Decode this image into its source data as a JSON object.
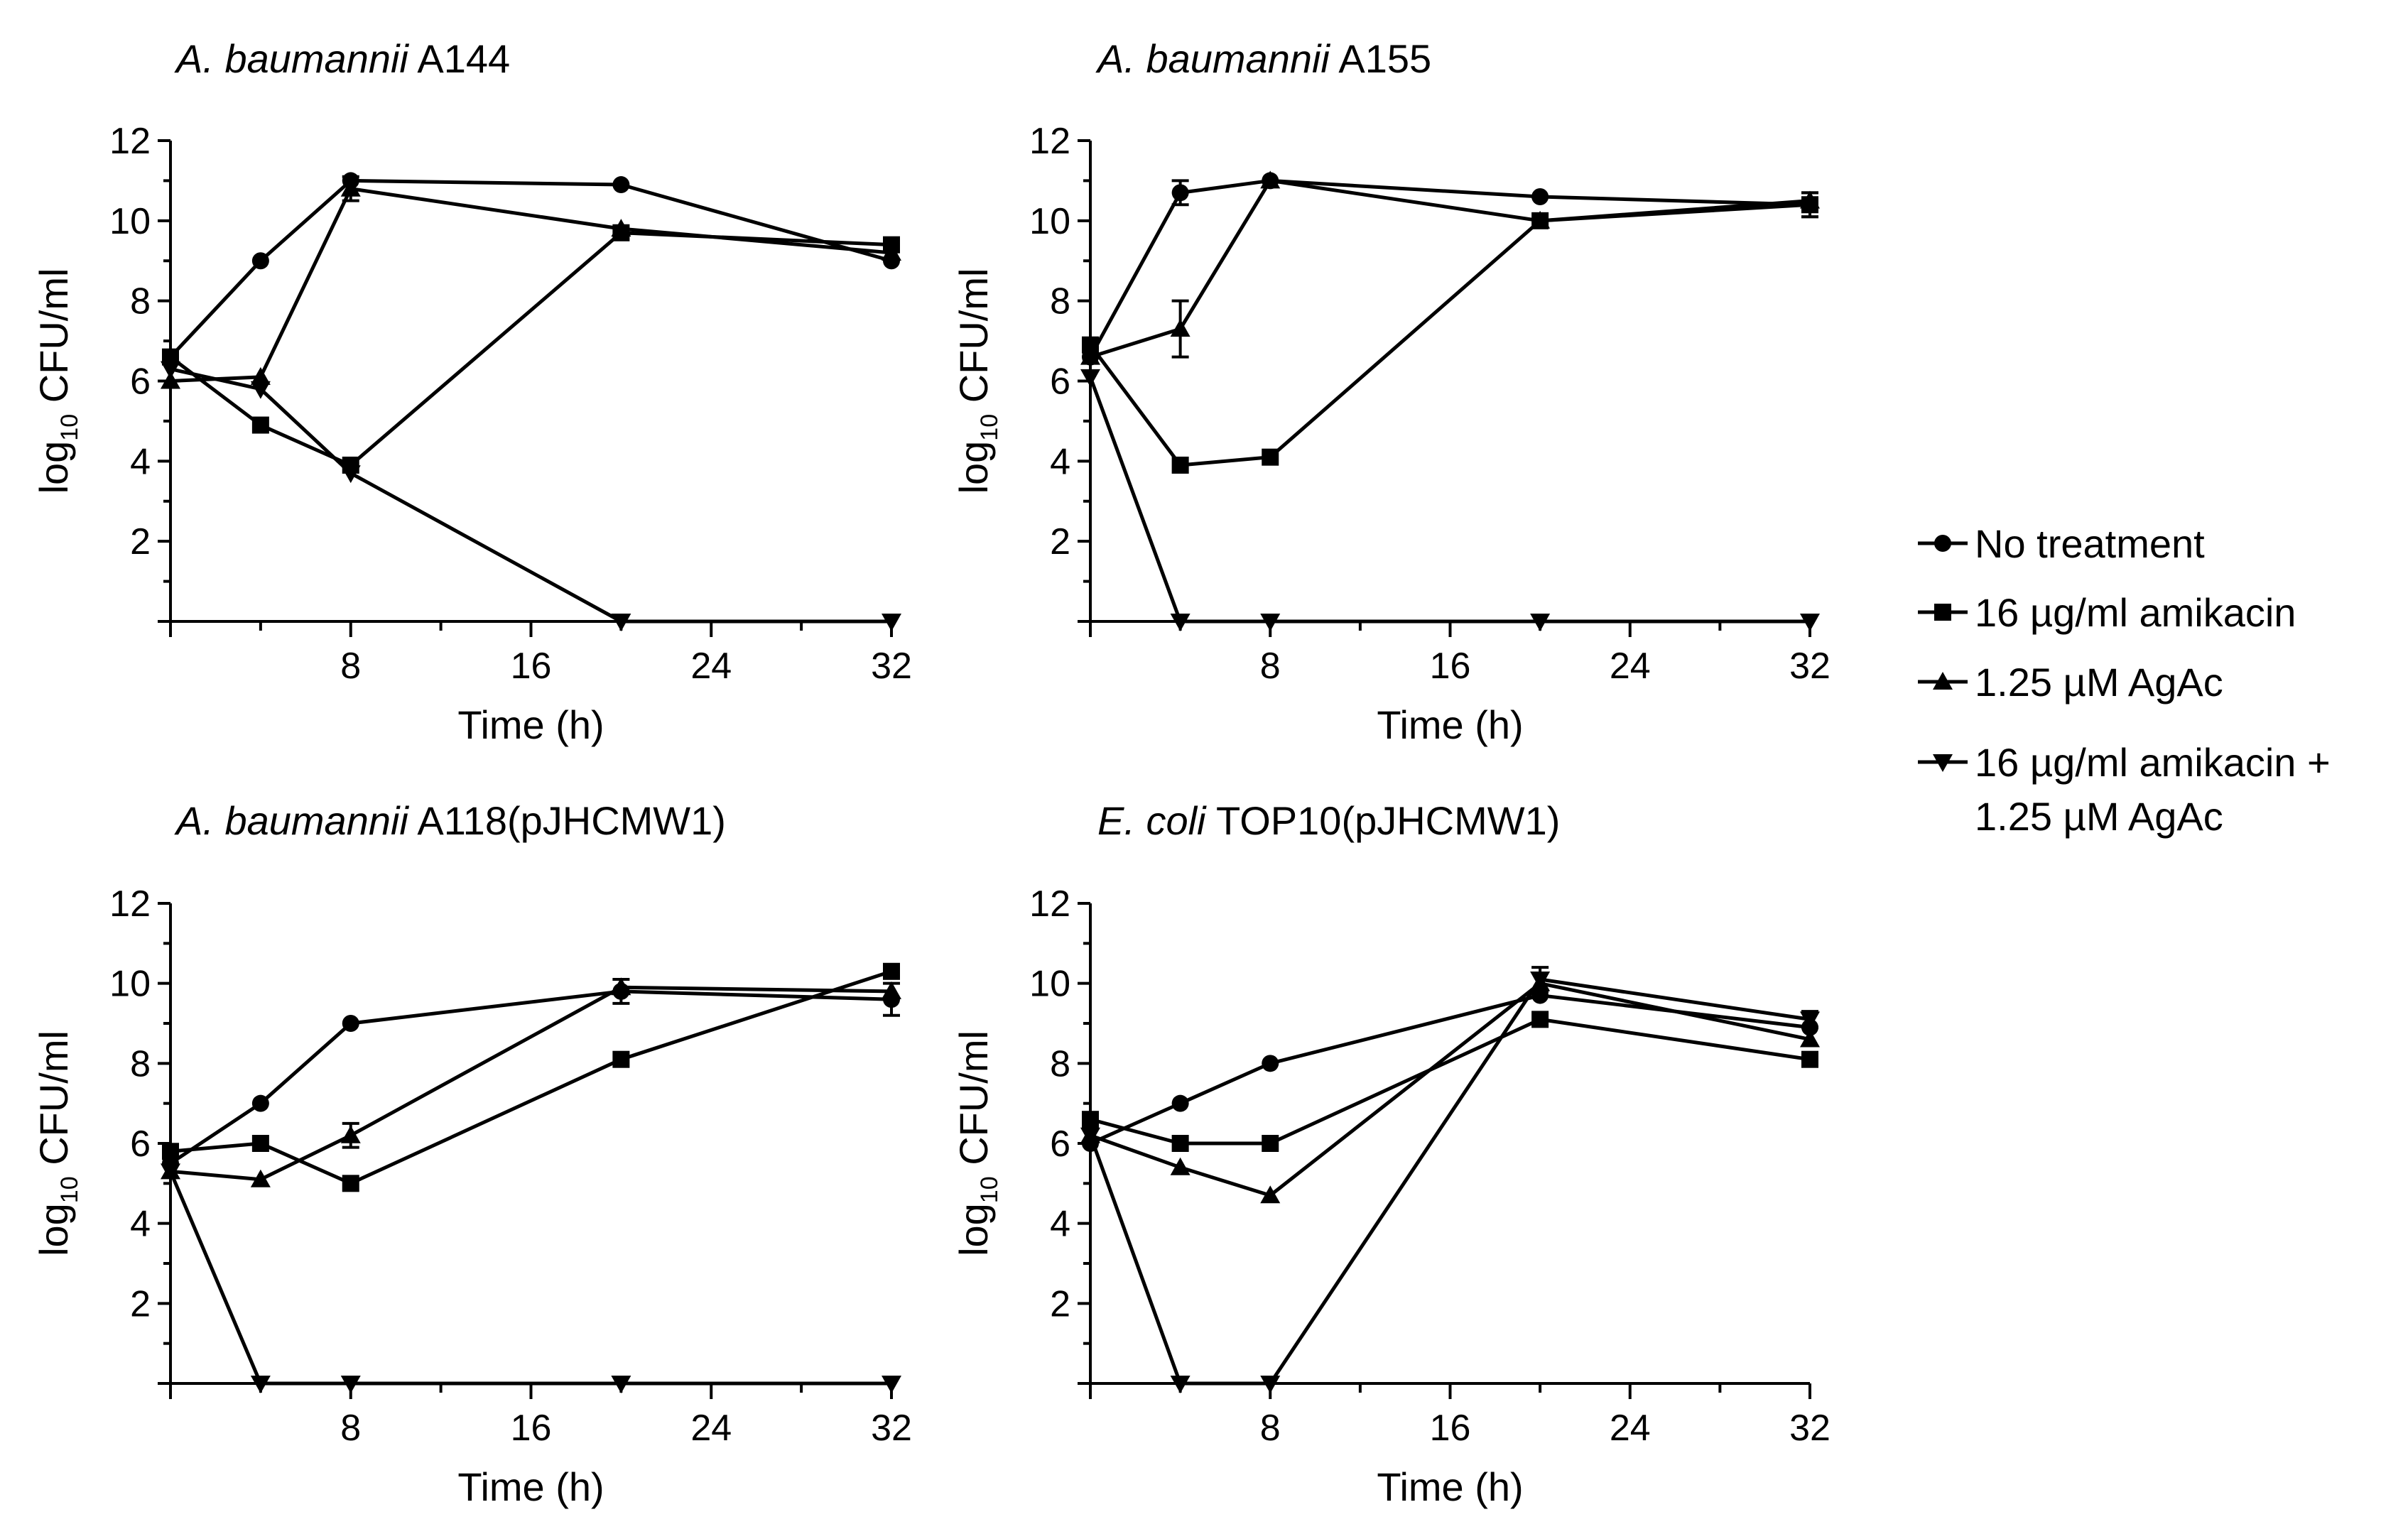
{
  "chart_data": [
    {
      "type": "line",
      "title_italic": "A. baumannii",
      "title_rest": " A144",
      "xlabel": "Time (h)",
      "ylabel_prefix": "log",
      "ylabel_sub": "10",
      "ylabel_suffix": " CFU/ml",
      "xlim": [
        0,
        32
      ],
      "ylim": [
        0,
        12
      ],
      "xticks": [
        8,
        16,
        24,
        32
      ],
      "yticks": [
        2,
        4,
        6,
        8,
        10,
        12
      ],
      "x": [
        0,
        4,
        8,
        20,
        32
      ],
      "series": [
        {
          "name": "No treatment",
          "marker": "circle",
          "values": [
            6.6,
            9.0,
            11.0,
            10.9,
            9.0
          ],
          "err": [
            0,
            0,
            0,
            0,
            0
          ]
        },
        {
          "name": "16 µg/ml amikacin",
          "marker": "square",
          "values": [
            6.6,
            4.9,
            3.9,
            9.7,
            9.4
          ],
          "err": [
            0,
            0,
            0,
            0,
            0
          ]
        },
        {
          "name": "1.25 µM AgAc",
          "marker": "triangle-up",
          "values": [
            6.0,
            6.1,
            10.8,
            9.8,
            9.2
          ],
          "err": [
            0,
            0,
            0.3,
            0,
            0
          ]
        },
        {
          "name": "16 µg/ml amikacin + 1.25 µM AgAc",
          "marker": "triangle-down",
          "values": [
            6.3,
            5.8,
            3.7,
            0,
            0
          ],
          "err": [
            0,
            0,
            0,
            0,
            0
          ]
        }
      ]
    },
    {
      "type": "line",
      "title_italic": "A. baumannii",
      "title_rest": " A155",
      "xlabel": "Time (h)",
      "ylabel_prefix": "log",
      "ylabel_sub": "10",
      "ylabel_suffix": " CFU/ml",
      "xlim": [
        0,
        32
      ],
      "ylim": [
        0,
        12
      ],
      "xticks": [
        8,
        16,
        24,
        32
      ],
      "yticks": [
        2,
        4,
        6,
        8,
        10,
        12
      ],
      "x": [
        0,
        4,
        8,
        20,
        32
      ],
      "series": [
        {
          "name": "No treatment",
          "marker": "circle",
          "values": [
            6.6,
            10.7,
            11.0,
            10.6,
            10.4
          ],
          "err": [
            0,
            0.3,
            0,
            0,
            0.3
          ]
        },
        {
          "name": "16 µg/ml amikacin",
          "marker": "square",
          "values": [
            6.9,
            3.9,
            4.1,
            10.0,
            10.4
          ],
          "err": [
            0,
            0,
            0,
            0,
            0.3
          ]
        },
        {
          "name": "1.25 µM AgAc",
          "marker": "triangle-up",
          "values": [
            6.6,
            7.3,
            11.0,
            10.0,
            10.5
          ],
          "err": [
            0,
            0.7,
            0,
            0,
            0
          ]
        },
        {
          "name": "16 µg/ml amikacin + 1.25 µM AgAc",
          "marker": "triangle-down",
          "values": [
            6.1,
            0,
            0,
            0,
            0
          ],
          "err": [
            0,
            0,
            0,
            0,
            0
          ]
        }
      ]
    },
    {
      "type": "line",
      "title_italic": "A. baumannii",
      "title_rest": " A118(pJHCMW1)",
      "xlabel": "Time (h)",
      "ylabel_prefix": "log",
      "ylabel_sub": "10",
      "ylabel_suffix": " CFU/ml",
      "xlim": [
        0,
        32
      ],
      "ylim": [
        0,
        12
      ],
      "xticks": [
        8,
        16,
        24,
        32
      ],
      "yticks": [
        2,
        4,
        6,
        8,
        10,
        12
      ],
      "x": [
        0,
        4,
        8,
        20,
        32
      ],
      "series": [
        {
          "name": "No treatment",
          "marker": "circle",
          "values": [
            5.5,
            7.0,
            9.0,
            9.8,
            9.6
          ],
          "err": [
            0,
            0,
            0,
            0.3,
            0.4
          ]
        },
        {
          "name": "16 µg/ml amikacin",
          "marker": "square",
          "values": [
            5.8,
            6.0,
            5.0,
            8.1,
            10.3
          ],
          "err": [
            0,
            0,
            0,
            0,
            0
          ]
        },
        {
          "name": "1.25 µM AgAc",
          "marker": "triangle-up",
          "values": [
            5.3,
            5.1,
            6.2,
            9.9,
            9.8
          ],
          "err": [
            0,
            0,
            0.3,
            0,
            0
          ]
        },
        {
          "name": "16 µg/ml amikacin + 1.25 µM AgAc",
          "marker": "triangle-down",
          "values": [
            5.3,
            0,
            0,
            0,
            0
          ],
          "err": [
            0,
            0,
            0,
            0,
            0
          ]
        }
      ]
    },
    {
      "type": "line",
      "title_italic": "E. coli",
      "title_rest": " TOP10(pJHCMW1)",
      "xlabel": "Time (h)",
      "ylabel_prefix": "log",
      "ylabel_sub": "10",
      "ylabel_suffix": " CFU/ml",
      "xlim": [
        0,
        32
      ],
      "ylim": [
        0,
        12
      ],
      "xticks": [
        8,
        16,
        24,
        32
      ],
      "yticks": [
        2,
        4,
        6,
        8,
        10,
        12
      ],
      "x": [
        0,
        4,
        8,
        20,
        32
      ],
      "series": [
        {
          "name": "No treatment",
          "marker": "circle",
          "values": [
            6.0,
            7.0,
            8.0,
            9.7,
            8.9
          ],
          "err": [
            0,
            0,
            0,
            0,
            0
          ]
        },
        {
          "name": "16 µg/ml amikacin",
          "marker": "square",
          "values": [
            6.6,
            6.0,
            6.0,
            9.1,
            8.1
          ],
          "err": [
            0,
            0,
            0,
            0,
            0
          ]
        },
        {
          "name": "1.25 µM AgAc",
          "marker": "triangle-up",
          "values": [
            6.2,
            5.4,
            4.7,
            10.0,
            8.6
          ],
          "err": [
            0,
            0,
            0,
            0,
            0
          ]
        },
        {
          "name": "16 µg/ml amikacin + 1.25 µM AgAc",
          "marker": "triangle-down",
          "values": [
            6.2,
            0,
            0,
            10.1,
            9.1
          ],
          "err": [
            0,
            0,
            0,
            0.3,
            0.2
          ]
        }
      ]
    }
  ],
  "legend": {
    "placement": "right",
    "items": [
      {
        "marker": "circle",
        "lines": [
          "No treatment"
        ]
      },
      {
        "marker": "square",
        "lines": [
          "16 µg/ml amikacin"
        ]
      },
      {
        "marker": "triangle-up",
        "lines": [
          "1.25 µM AgAc"
        ]
      },
      {
        "marker": "triangle-down",
        "lines": [
          "16 µg/ml amikacin +",
          "1.25 µM AgAc"
        ]
      }
    ]
  }
}
